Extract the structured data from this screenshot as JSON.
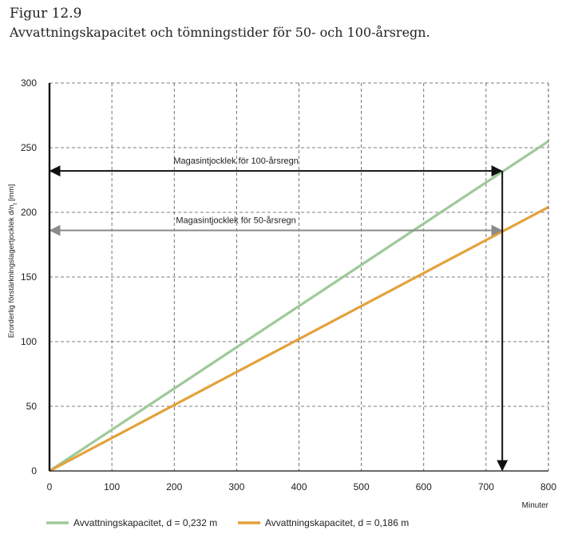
{
  "figure": {
    "label": "Figur 12.9",
    "title": "Avvattningskapacitet och tömningstider för 50- och 100-årsregn."
  },
  "chart_data": {
    "type": "line",
    "ylabel": "Erorderlig förstärkningslagertjocklek d/n",
    "ylabel_sub": "t",
    "ylabel_unit": "[mm]",
    "xlabel": "Minuter",
    "xlim": [
      0,
      800
    ],
    "ylim": [
      0,
      300
    ],
    "xticks": [
      0,
      100,
      200,
      300,
      400,
      500,
      600,
      700,
      800
    ],
    "yticks": [
      0,
      50,
      100,
      150,
      200,
      250,
      300
    ],
    "grid": true,
    "legend_position": "bottom",
    "series": [
      {
        "name": "Avvattningskapacitet, d = 0,232 m",
        "color": "#9fc99a",
        "points": [
          [
            0,
            0
          ],
          [
            800,
            255
          ]
        ]
      },
      {
        "name": "Avvattningskapacitet, d = 0,186 m",
        "color": "#e3a23c",
        "points": [
          [
            0,
            0
          ],
          [
            800,
            204
          ]
        ]
      }
    ],
    "annotations": [
      {
        "label": "Magasintjocklek för 100-årsregn",
        "y": 232,
        "x_start": 0,
        "x_end": 726,
        "color": "#111111"
      },
      {
        "label": "Magasintjocklek för 50-årsregn",
        "y": 186,
        "x_start": 0,
        "x_end": 726,
        "color": "#8a8a8a"
      }
    ],
    "vertical_marker": {
      "x": 726,
      "y_start": 232,
      "y_end": 0,
      "color": "#111111"
    }
  }
}
